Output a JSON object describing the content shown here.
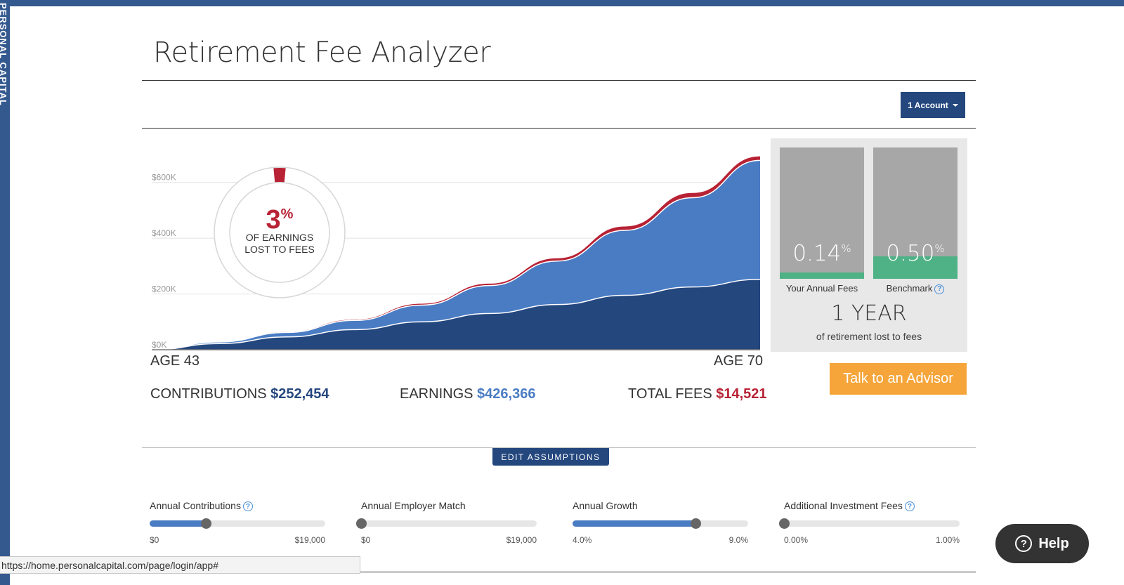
{
  "brand": {
    "vertical_text": "PERSONAL CAPITAL"
  },
  "page": {
    "title": "Retirement Fee Analyzer"
  },
  "account_selector": {
    "label": "1 Account"
  },
  "chart_data": {
    "type": "area",
    "x": [
      43,
      46,
      49,
      52,
      55,
      58,
      61,
      64,
      67,
      70
    ],
    "series": [
      {
        "name": "Contributions",
        "values": [
          0,
          22000,
          46000,
          72000,
          100000,
          130000,
          162000,
          195000,
          225000,
          252454
        ]
      },
      {
        "name": "Earnings",
        "values": [
          0,
          28000,
          62000,
          105000,
          160000,
          230000,
          318000,
          428000,
          545000,
          678820
        ]
      }
    ],
    "fees_line_top": [
      0,
      28500,
      63500,
      108000,
      165000,
      237000,
      328000,
      442000,
      562000,
      693341
    ],
    "ylim": [
      0,
      700000
    ],
    "y_ticks": [
      "$0K",
      "$200K",
      "$400K",
      "$600K"
    ],
    "y_tick_values": [
      0,
      200000,
      400000,
      600000
    ],
    "colors": {
      "contributions": "#24477e",
      "earnings": "#4a7cc4",
      "fees": "#b82235"
    }
  },
  "donut": {
    "percent": "3",
    "percent_sign": "%",
    "line1": "OF EARNINGS",
    "line2": "LOST TO FEES",
    "fee_fraction": 0.03
  },
  "axis": {
    "start": "AGE 43",
    "end": "AGE 70"
  },
  "summary": {
    "contributions_label": "CONTRIBUTIONS",
    "contributions_value": "$252,454",
    "earnings_label": "EARNINGS",
    "earnings_value": "$426,366",
    "fees_label": "TOTAL FEES",
    "fees_value": "$14,521"
  },
  "fee_compare": {
    "yours_pct": "0.14",
    "yours_label": "Your Annual Fees",
    "yours_fill": 0.05,
    "bench_pct": "0.50",
    "bench_label": "Benchmark",
    "bench_fill": 0.17,
    "pct_sign": "%",
    "years": "1 YEAR",
    "years_sub": "of retirement lost to fees"
  },
  "advisor_button": "Talk to an Advisor",
  "edit_assumptions": "EDIT ASSUMPTIONS",
  "sliders": [
    {
      "label": "Annual Contributions",
      "min": "$0",
      "max": "$19,000",
      "value": 0.32,
      "help": true
    },
    {
      "label": "Annual Employer Match",
      "min": "$0",
      "max": "$19,000",
      "value": 0.0,
      "help": false
    },
    {
      "label": "Annual Growth",
      "min": "4.0%",
      "max": "9.0%",
      "value": 0.7,
      "help": false
    },
    {
      "label": "Additional Investment Fees",
      "min": "0.00%",
      "max": "1.00%",
      "value": 0.0,
      "help": true
    }
  ],
  "status_url": "https://home.personalcapital.com/page/login/app#",
  "help_button": "Help",
  "icons": {
    "help": "question-circle-icon",
    "caret": "caret-down-icon"
  }
}
